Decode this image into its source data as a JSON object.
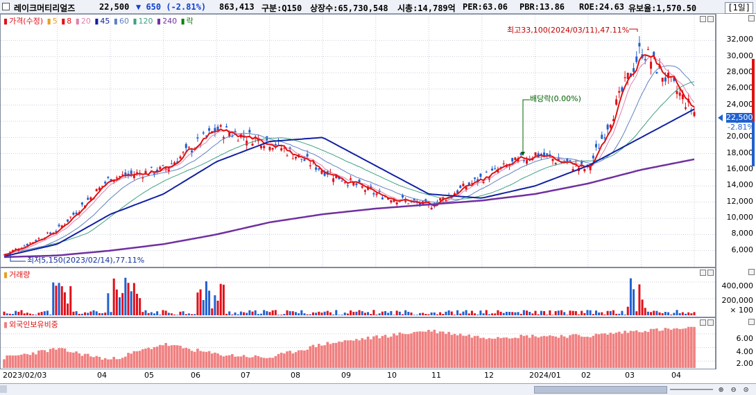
{
  "header": {
    "name": "레이크머티리얼즈",
    "price": "22,500",
    "change": "▼ 650 (-2.81%)",
    "volume": "863,413",
    "market": "구분:Q150",
    "shares": "상장수:65,730,548",
    "cap": "시총:14,789억",
    "per": "PER:63.06",
    "pbr": "PBR:13.86",
    "roe": "ROE:24.63",
    "float": "유보율:1,570.50",
    "period": "[1일]"
  },
  "legend": {
    "price": "가격(수정)",
    "ma5": "5",
    "ma8": "8",
    "ma20": "20",
    "ma45": "45",
    "ma60": "60",
    "ma120": "120",
    "ma240": "240",
    "drop": "락",
    "volume": "거래량",
    "foreign": "외국인보유비중"
  },
  "annotations": {
    "high": "최고33,100(2024/03/11),47.11%",
    "low": "최저5,150(2023/02/14),77.11%",
    "dividend": "배당락(0.00%)",
    "last_price": "22,500",
    "last_change": "-2.81%",
    "vol_unit": "× 100"
  },
  "colors": {
    "up": "#e0101a",
    "down": "#2060d0",
    "ma5": "#e8a020",
    "ma8": "#e01010",
    "ma20": "#e080b0",
    "ma45": "#1020a0",
    "ma60": "#6080c0",
    "ma120": "#40a080",
    "ma240": "#7030a0",
    "foreign": "#f08080"
  },
  "chart_data": [
    {
      "type": "line",
      "panel": "price",
      "x": [
        "2023/02/03",
        "2023/04",
        "2023/05",
        "2023/06",
        "2023/07",
        "2023/08",
        "2023/09",
        "2023/10",
        "2023/11",
        "2023/12",
        "2024/01",
        "2024/02",
        "2024/03",
        "2024/04"
      ],
      "x_tick_labels": [
        "2023/02/03",
        "04",
        "05",
        "06",
        "07",
        "08",
        "09",
        "10",
        "11",
        "12",
        "2024/01",
        "02",
        "03",
        "04"
      ],
      "series": [
        {
          "name": "가격(수정)",
          "values": [
            5500,
            8500,
            15000,
            16000,
            21000,
            19500,
            16000,
            13000,
            11500,
            15000,
            18000,
            16000,
            31000,
            23150
          ]
        },
        {
          "name": "45",
          "values": [
            5300,
            6800,
            10500,
            13000,
            17000,
            19500,
            20000,
            16500,
            13000,
            12500,
            14000,
            16500,
            20000,
            23500
          ]
        },
        {
          "name": "240",
          "values": [
            5200,
            5400,
            6000,
            6800,
            8000,
            9500,
            10500,
            11200,
            11700,
            12200,
            13000,
            14300,
            16000,
            17300
          ]
        }
      ],
      "ylim": [
        4000,
        34000
      ],
      "y_ticks": [
        "6,000",
        "8,000",
        "10,000",
        "12,000",
        "14,000",
        "16,000",
        "18,000",
        "20,000",
        "22,000",
        "24,000",
        "26,000",
        "28,000",
        "30,000",
        "32,000"
      ],
      "last_value": 22500,
      "high": {
        "value": 33100,
        "date": "2024/03/11"
      },
      "low": {
        "value": 5150,
        "date": "2023/02/14"
      }
    },
    {
      "type": "bar",
      "panel": "volume",
      "unit": "× 100",
      "y_ticks": [
        "400,000",
        "200,000"
      ],
      "ylim": [
        0,
        500000
      ]
    },
    {
      "type": "bar",
      "panel": "foreign",
      "y_ticks": [
        "6.00",
        "4.00",
        "2.00"
      ],
      "ylim": [
        1.0,
        7.5
      ],
      "x": [
        "2023/02",
        "2023/04",
        "2023/05",
        "2023/06",
        "2023/07",
        "2023/08",
        "2023/09",
        "2023/10",
        "2023/11",
        "2023/12",
        "2024/01",
        "2024/02",
        "2024/03",
        "2024/04"
      ],
      "values": [
        2.5,
        3.8,
        2.2,
        4.5,
        3.0,
        2.5,
        4.5,
        5.5,
        6.5,
        5.5,
        5.7,
        5.7,
        6.5,
        6.8
      ]
    }
  ]
}
